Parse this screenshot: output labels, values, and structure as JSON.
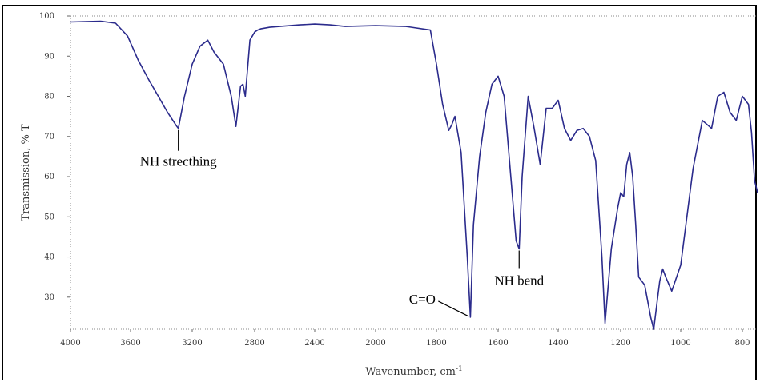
{
  "chart_data": {
    "type": "line",
    "title": "",
    "xlabel": "Wavenumber, cm",
    "xlabel_sup": "-1",
    "ylabel": "Transmission, % T",
    "xlim": [
      4000,
      750
    ],
    "ylim": [
      22,
      100
    ],
    "x_ticks": [
      4000,
      3600,
      3200,
      2800,
      2400,
      2000,
      1800,
      1600,
      1400,
      1200,
      1000,
      800
    ],
    "y_ticks": [
      30,
      40,
      50,
      60,
      70,
      80,
      90,
      100
    ],
    "grid": false,
    "line_color": "#2b2b8c",
    "series": [
      {
        "x": [
          4000,
          3900,
          3800,
          3700,
          3620,
          3550,
          3480,
          3420,
          3360,
          3300,
          3290,
          3250,
          3200,
          3150,
          3100,
          3060,
          3000,
          2950,
          2920,
          2890,
          2875,
          2860,
          2830,
          2800,
          2780,
          2760,
          2700,
          2600,
          2500,
          2400,
          2300,
          2200,
          2100,
          2000,
          1900,
          1820,
          1800,
          1780,
          1760,
          1750,
          1740,
          1720,
          1700,
          1690,
          1680,
          1660,
          1640,
          1620,
          1600,
          1580,
          1560,
          1540,
          1530,
          1520,
          1500,
          1480,
          1460,
          1440,
          1420,
          1400,
          1380,
          1360,
          1340,
          1320,
          1300,
          1280,
          1260,
          1250,
          1230,
          1210,
          1200,
          1190,
          1180,
          1170,
          1160,
          1150,
          1140,
          1120,
          1100,
          1090,
          1080,
          1070,
          1060,
          1050,
          1030,
          1000,
          960,
          930,
          900,
          880,
          860,
          840,
          820,
          800,
          780,
          770,
          760,
          750
        ],
        "y": [
          98.5,
          98.6,
          98.7,
          98.2,
          95,
          89,
          84,
          80,
          76,
          72.5,
          72,
          80,
          88,
          92.5,
          94,
          91,
          88,
          80,
          72.5,
          82.5,
          83,
          80,
          94,
          96,
          96.5,
          96.8,
          97.2,
          97.5,
          97.8,
          98,
          97.8,
          97.4,
          97.5,
          97.6,
          97.4,
          96.5,
          88,
          78,
          71.5,
          73,
          75,
          66,
          40,
          25,
          48,
          65,
          76,
          83,
          85,
          80,
          62,
          44,
          42,
          60,
          80,
          72,
          63,
          77,
          77,
          79,
          72,
          69,
          71.5,
          72,
          70,
          64,
          40,
          23.5,
          42,
          52,
          56,
          55,
          63,
          66,
          60,
          48,
          35,
          33,
          25,
          22,
          28,
          34,
          37,
          35,
          31.5,
          38,
          62,
          74,
          72,
          80,
          81,
          76,
          74,
          80,
          78,
          71,
          59,
          56
        ]
      }
    ],
    "annotations": [
      {
        "text": "NH strecthing",
        "x": 3290,
        "y": 72
      },
      {
        "text": "NH bend",
        "x": 1530,
        "y": 42
      },
      {
        "text": "C=O",
        "x": 1690,
        "y": 25
      }
    ]
  }
}
